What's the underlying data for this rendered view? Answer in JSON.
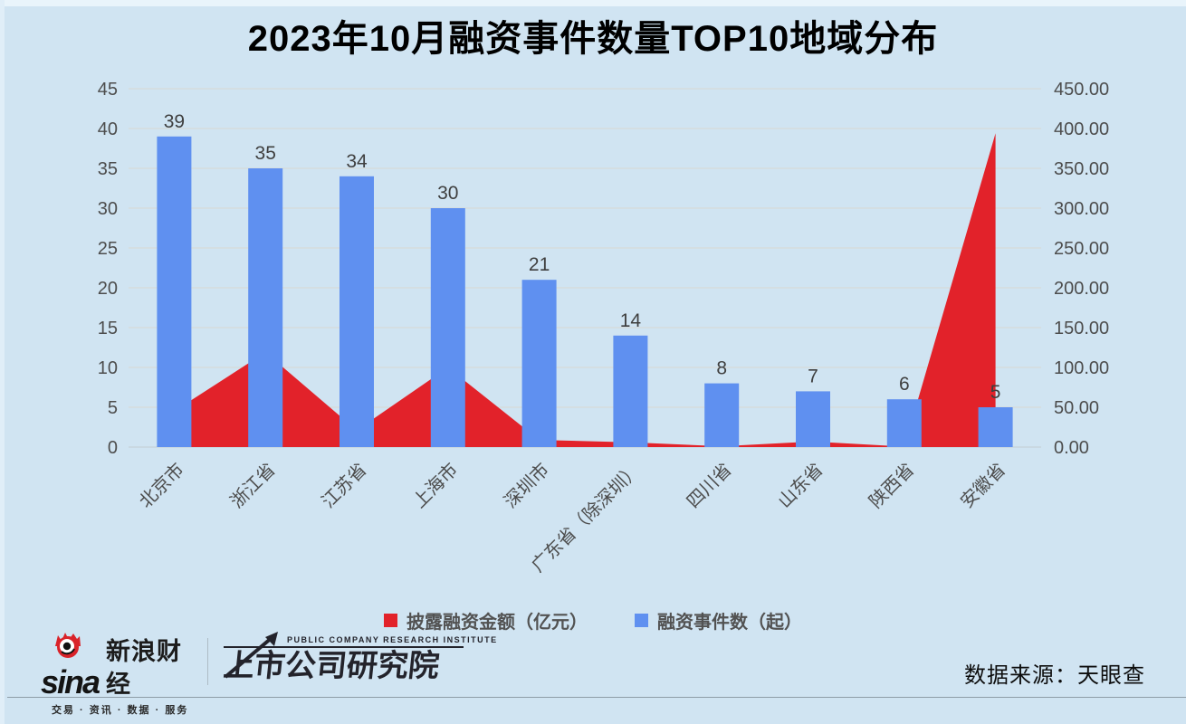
{
  "title": "2023年10月融资事件数量TOP10地域分布",
  "chart_data": {
    "type": "combo_bar_area",
    "categories": [
      "北京市",
      "浙江省",
      "江苏省",
      "上海市",
      "深圳市",
      "广东省（除深圳）",
      "四川省",
      "山东省",
      "陕西省",
      "安徽省"
    ],
    "series": [
      {
        "name": "披露融资金额（亿元）",
        "type": "area",
        "axis": "right",
        "values": [
          45,
          119,
          21,
          100,
          9,
          6,
          1,
          7,
          0.5,
          394
        ]
      },
      {
        "name": "融资事件数（起）",
        "type": "bar",
        "axis": "left",
        "values": [
          39,
          35,
          34,
          30,
          21,
          14,
          8,
          7,
          6,
          5
        ]
      }
    ],
    "bar_value_labels": [
      "39",
      "35",
      "34",
      "30",
      "21",
      "14",
      "8",
      "7",
      "6",
      "5"
    ],
    "left_axis": {
      "min": 0,
      "max": 45,
      "step": 5,
      "tick_labels": [
        "0",
        "5",
        "10",
        "15",
        "20",
        "25",
        "30",
        "35",
        "40",
        "45"
      ]
    },
    "right_axis": {
      "min": 0,
      "max": 450,
      "step": 50,
      "tick_labels": [
        "0.00",
        "50.00",
        "100.00",
        "150.00",
        "200.00",
        "250.00",
        "300.00",
        "350.00",
        "400.00",
        "450.00"
      ]
    },
    "grid": true,
    "legend_position": "bottom"
  },
  "legend": {
    "items": [
      {
        "label": "披露融资金额（亿元）",
        "color": "#e2222a"
      },
      {
        "label": "融资事件数（起）",
        "color": "#5f90f0"
      }
    ]
  },
  "footer": {
    "sina": {
      "wordmark": "sina",
      "brand": "新浪财经",
      "tagline": "交易 · 资讯 · 数据 · 服务"
    },
    "institute": {
      "subtitle": "PUBLIC COMPANY RESEARCH INSTITUTE",
      "wordmark": "上市公司研究院"
    },
    "source": "数据来源：天眼查"
  },
  "colors": {
    "background": "#d0e4f2",
    "bar": "#5f90f0",
    "area": "#e2222a",
    "gridline": "#d9d9d1",
    "baseline": "#c2ccd2",
    "axis_text": "#4d4d4d",
    "value_label_text": "#3f3f3f",
    "category_text": "#4d4d4d"
  }
}
